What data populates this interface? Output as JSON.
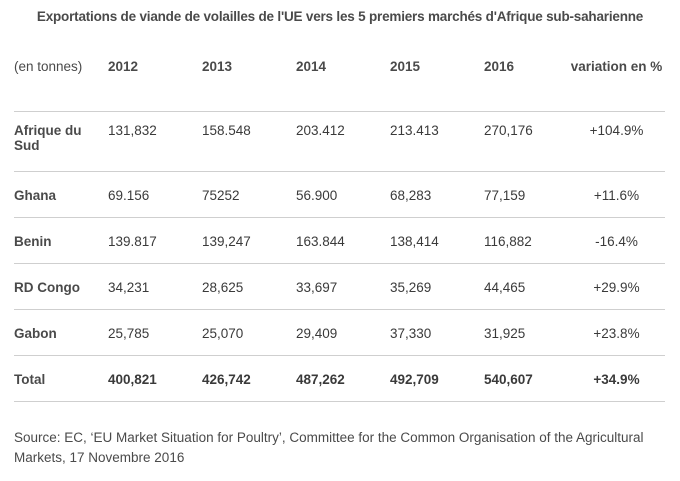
{
  "title": "Exportations de viande de volailles de l'UE vers les 5 premiers marchés d'Afrique sub-saharienne",
  "table": {
    "headers": [
      "(en tonnes)",
      "2012",
      "2013",
      "2014",
      "2015",
      "2016",
      "variation en %"
    ],
    "rows": [
      {
        "label": "Afrique du Sud",
        "values": [
          "131,832",
          "158.548",
          "203.412",
          "213.413",
          "270,176",
          "+104.9%"
        ]
      },
      {
        "label": "Ghana",
        "values": [
          "69.156",
          "75252",
          "56.900",
          "68,283",
          "77,159",
          "+11.6%"
        ]
      },
      {
        "label": "Benin",
        "values": [
          "139.817",
          "139,247",
          "163.844",
          "138,414",
          "116,882",
          "-16.4%"
        ]
      },
      {
        "label": "RD Congo",
        "values": [
          "34,231",
          "28,625",
          "33,697",
          "35,269",
          "44,465",
          "+29.9%"
        ]
      },
      {
        "label": "Gabon",
        "values": [
          "25,785",
          "25,070",
          "29,409",
          "37,330",
          "31,925",
          "+23.8%"
        ]
      },
      {
        "label": "Total",
        "values": [
          "400,821",
          "426,742",
          "487,262",
          "492,709",
          "540,607",
          "+34.9%"
        ]
      }
    ]
  },
  "source": "Source: EC, ‘EU Market Situation for Poultry’, Committee for the Common Organisation of the Agricultural Markets, 17 Novembre 2016"
}
